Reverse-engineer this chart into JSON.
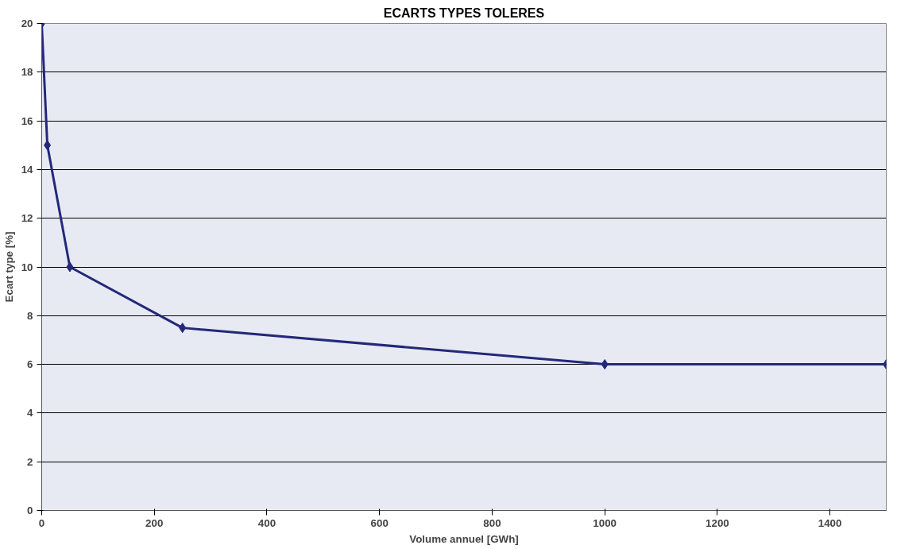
{
  "chart_data": {
    "type": "line",
    "title": "ECARTS TYPES TOLERES",
    "xlabel": "Volume annuel [GWh]",
    "ylabel": "Ecart type [%]",
    "x": [
      0,
      10,
      50,
      250,
      1000,
      1500
    ],
    "series": [
      {
        "color": "#23287a",
        "values": [
          20,
          15,
          10,
          7.5,
          6,
          6
        ]
      }
    ],
    "xlim": [
      0,
      1500
    ],
    "ylim": [
      0,
      20
    ],
    "xticks": [
      0,
      200,
      400,
      600,
      800,
      1000,
      1200,
      1400
    ],
    "yticks": [
      0,
      2,
      4,
      6,
      8,
      10,
      12,
      14,
      16,
      18,
      20
    ],
    "grid": "y",
    "marker": "diamond",
    "line_style": "solid"
  }
}
